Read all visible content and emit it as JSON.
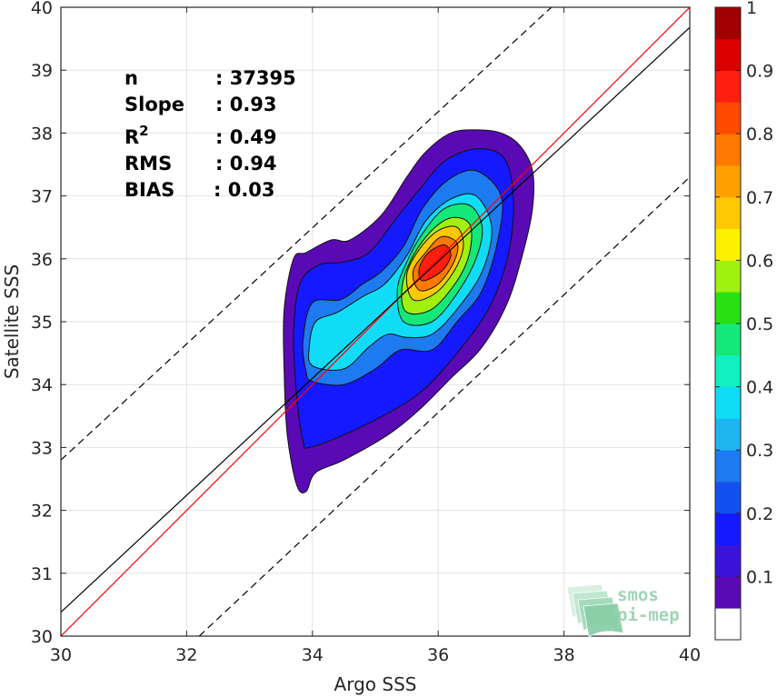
{
  "chart_data": {
    "type": "contour",
    "xlabel": "Argo SSS",
    "ylabel": "Satellite SSS",
    "xlim": [
      30,
      40
    ],
    "ylim": [
      30,
      40
    ],
    "xticks": [
      "30",
      "32",
      "34",
      "36",
      "38",
      "40"
    ],
    "yticks": [
      "30",
      "31",
      "32",
      "33",
      "34",
      "35",
      "36",
      "37",
      "38",
      "39",
      "40"
    ],
    "grid": true,
    "stats": [
      {
        "label": "n",
        "value": ": 37395"
      },
      {
        "label": "Slope",
        "value": ": 0.93"
      },
      {
        "label": "R",
        "sup": "2",
        "value": ": 0.49"
      },
      {
        "label": "RMS",
        "value": ": 0.94"
      },
      {
        "label": "BIAS",
        "value": ": 0.03"
      }
    ],
    "lines": [
      {
        "id": "identity",
        "color": "#ff0000",
        "style": "solid",
        "points": [
          [
            30,
            30
          ],
          [
            40,
            40
          ]
        ]
      },
      {
        "id": "fit",
        "color": "#000000",
        "style": "solid",
        "points": [
          [
            30,
            30.38
          ],
          [
            40,
            39.68
          ]
        ]
      },
      {
        "id": "upper-bound",
        "color": "#000000",
        "style": "dashed",
        "points": [
          [
            30,
            32.8
          ],
          [
            37.8,
            40
          ]
        ]
      },
      {
        "id": "lower-bound",
        "color": "#000000",
        "style": "dashed",
        "points": [
          [
            32.2,
            30
          ],
          [
            40,
            37.3
          ]
        ]
      }
    ],
    "contours": [
      {
        "level": 0.05,
        "points": [
          [
            33.9,
            32.3
          ],
          [
            34.05,
            32.6
          ],
          [
            34.5,
            32.8
          ],
          [
            35.2,
            33.2
          ],
          [
            35.7,
            33.6
          ],
          [
            36.2,
            34.1
          ],
          [
            36.7,
            34.6
          ],
          [
            37.1,
            35.3
          ],
          [
            37.35,
            36.1
          ],
          [
            37.5,
            36.8
          ],
          [
            37.5,
            37.4
          ],
          [
            37.3,
            37.8
          ],
          [
            37.0,
            38.0
          ],
          [
            36.6,
            38.05
          ],
          [
            36.2,
            38.0
          ],
          [
            35.8,
            37.7
          ],
          [
            35.5,
            37.3
          ],
          [
            35.1,
            36.7
          ],
          [
            34.6,
            36.3
          ],
          [
            34.3,
            36.3
          ],
          [
            33.9,
            36.1
          ],
          [
            33.7,
            36.0
          ],
          [
            33.55,
            35.2
          ],
          [
            33.55,
            34.2
          ],
          [
            33.6,
            33.2
          ],
          [
            33.75,
            32.4
          ]
        ]
      },
      {
        "level": 0.15,
        "points": [
          [
            33.95,
            33.0
          ],
          [
            34.5,
            33.2
          ],
          [
            35.3,
            33.6
          ],
          [
            35.8,
            33.95
          ],
          [
            36.3,
            34.5
          ],
          [
            36.8,
            35.2
          ],
          [
            37.1,
            36.0
          ],
          [
            37.2,
            36.9
          ],
          [
            37.05,
            37.6
          ],
          [
            36.6,
            37.75
          ],
          [
            36.1,
            37.55
          ],
          [
            35.7,
            37.1
          ],
          [
            35.3,
            36.6
          ],
          [
            34.9,
            36.1
          ],
          [
            34.5,
            35.95
          ],
          [
            34.1,
            35.9
          ],
          [
            33.8,
            35.6
          ],
          [
            33.7,
            34.8
          ],
          [
            33.75,
            33.8
          ],
          [
            33.85,
            33.1
          ]
        ]
      },
      {
        "level": 0.25,
        "points": [
          [
            34.0,
            34.05
          ],
          [
            34.5,
            34.0
          ],
          [
            35.0,
            34.25
          ],
          [
            35.4,
            34.55
          ],
          [
            35.9,
            34.55
          ],
          [
            36.3,
            35.0
          ],
          [
            36.7,
            35.5
          ],
          [
            36.95,
            36.3
          ],
          [
            37.0,
            37.0
          ],
          [
            36.6,
            37.4
          ],
          [
            36.15,
            37.25
          ],
          [
            35.75,
            36.8
          ],
          [
            35.45,
            36.2
          ],
          [
            35.1,
            35.8
          ],
          [
            34.8,
            35.6
          ],
          [
            34.45,
            35.35
          ],
          [
            34.0,
            35.3
          ],
          [
            33.85,
            34.7
          ],
          [
            33.9,
            34.2
          ]
        ]
      },
      {
        "level": 0.35,
        "points": [
          [
            34.0,
            34.3
          ],
          [
            34.5,
            34.25
          ],
          [
            34.9,
            34.6
          ],
          [
            35.2,
            34.8
          ],
          [
            35.5,
            34.75
          ],
          [
            35.9,
            34.8
          ],
          [
            36.3,
            35.2
          ],
          [
            36.7,
            35.8
          ],
          [
            36.85,
            36.5
          ],
          [
            36.6,
            37.0
          ],
          [
            36.2,
            36.95
          ],
          [
            35.8,
            36.6
          ],
          [
            35.5,
            36.05
          ],
          [
            35.15,
            35.6
          ],
          [
            34.8,
            35.4
          ],
          [
            34.4,
            35.15
          ],
          [
            34.05,
            35.0
          ],
          [
            33.95,
            34.6
          ]
        ]
      },
      {
        "level": 0.45,
        "points": [
          [
            35.45,
            35.0
          ],
          [
            35.9,
            35.0
          ],
          [
            36.3,
            35.45
          ],
          [
            36.6,
            36.0
          ],
          [
            36.7,
            36.5
          ],
          [
            36.5,
            36.85
          ],
          [
            36.1,
            36.8
          ],
          [
            35.75,
            36.4
          ],
          [
            35.5,
            35.95
          ],
          [
            35.35,
            35.5
          ]
        ]
      },
      {
        "level": 0.55,
        "points": [
          [
            35.5,
            35.15
          ],
          [
            35.9,
            35.2
          ],
          [
            36.3,
            35.65
          ],
          [
            36.5,
            36.1
          ],
          [
            36.5,
            36.55
          ],
          [
            36.2,
            36.65
          ],
          [
            35.85,
            36.4
          ],
          [
            35.55,
            35.95
          ],
          [
            35.42,
            35.5
          ]
        ]
      },
      {
        "level": 0.65,
        "points": [
          [
            35.6,
            35.35
          ],
          [
            35.95,
            35.45
          ],
          [
            36.25,
            35.8
          ],
          [
            36.4,
            36.2
          ],
          [
            36.3,
            36.5
          ],
          [
            36.0,
            36.45
          ],
          [
            35.7,
            36.15
          ],
          [
            35.5,
            35.75
          ]
        ]
      },
      {
        "level": 0.75,
        "points": [
          [
            35.7,
            35.5
          ],
          [
            36.0,
            35.6
          ],
          [
            36.25,
            35.95
          ],
          [
            36.3,
            36.25
          ],
          [
            36.05,
            36.35
          ],
          [
            35.8,
            36.1
          ],
          [
            35.6,
            35.8
          ]
        ]
      },
      {
        "level": 0.85,
        "points": [
          [
            35.75,
            35.65
          ],
          [
            36.05,
            35.8
          ],
          [
            36.2,
            36.05
          ],
          [
            36.1,
            36.22
          ],
          [
            35.85,
            36.1
          ],
          [
            35.7,
            35.85
          ]
        ]
      }
    ],
    "colorbar": {
      "range": [
        0,
        1
      ],
      "ticks": [
        "0.1",
        "0.2",
        "0.3",
        "0.4",
        "0.5",
        "0.6",
        "0.7",
        "0.8",
        "0.9",
        "1"
      ],
      "colors": [
        "#ffffff",
        "#5a0ab4",
        "#3a14d8",
        "#1419ff",
        "#1450f0",
        "#1e7af0",
        "#1eb4f0",
        "#10dcf8",
        "#10f0c0",
        "#14e878",
        "#28e014",
        "#a0f010",
        "#fff000",
        "#ffc800",
        "#ffa000",
        "#ff7800",
        "#ff4a00",
        "#ff1e10",
        "#dc0000",
        "#a00000"
      ]
    },
    "logo": {
      "line1": "smos",
      "line2": "pi-mep"
    }
  }
}
